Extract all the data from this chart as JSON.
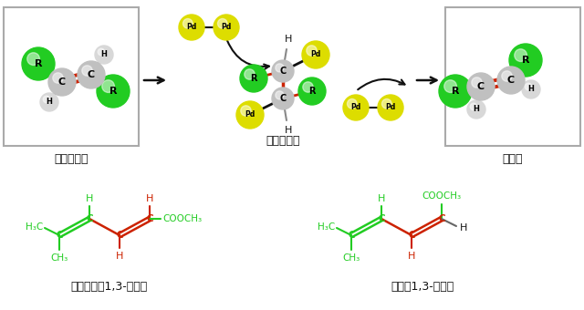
{
  "bg_color": "#ffffff",
  "green": "#22cc22",
  "red": "#cc2200",
  "black": "#111111",
  "label_trans": "トランス体",
  "label_intermediate": "反応中間体",
  "label_cis": "シス体",
  "label_trans_diene": "トランス型1,3-ジエン",
  "label_cis_diene": "シス型1,3-ジエン"
}
